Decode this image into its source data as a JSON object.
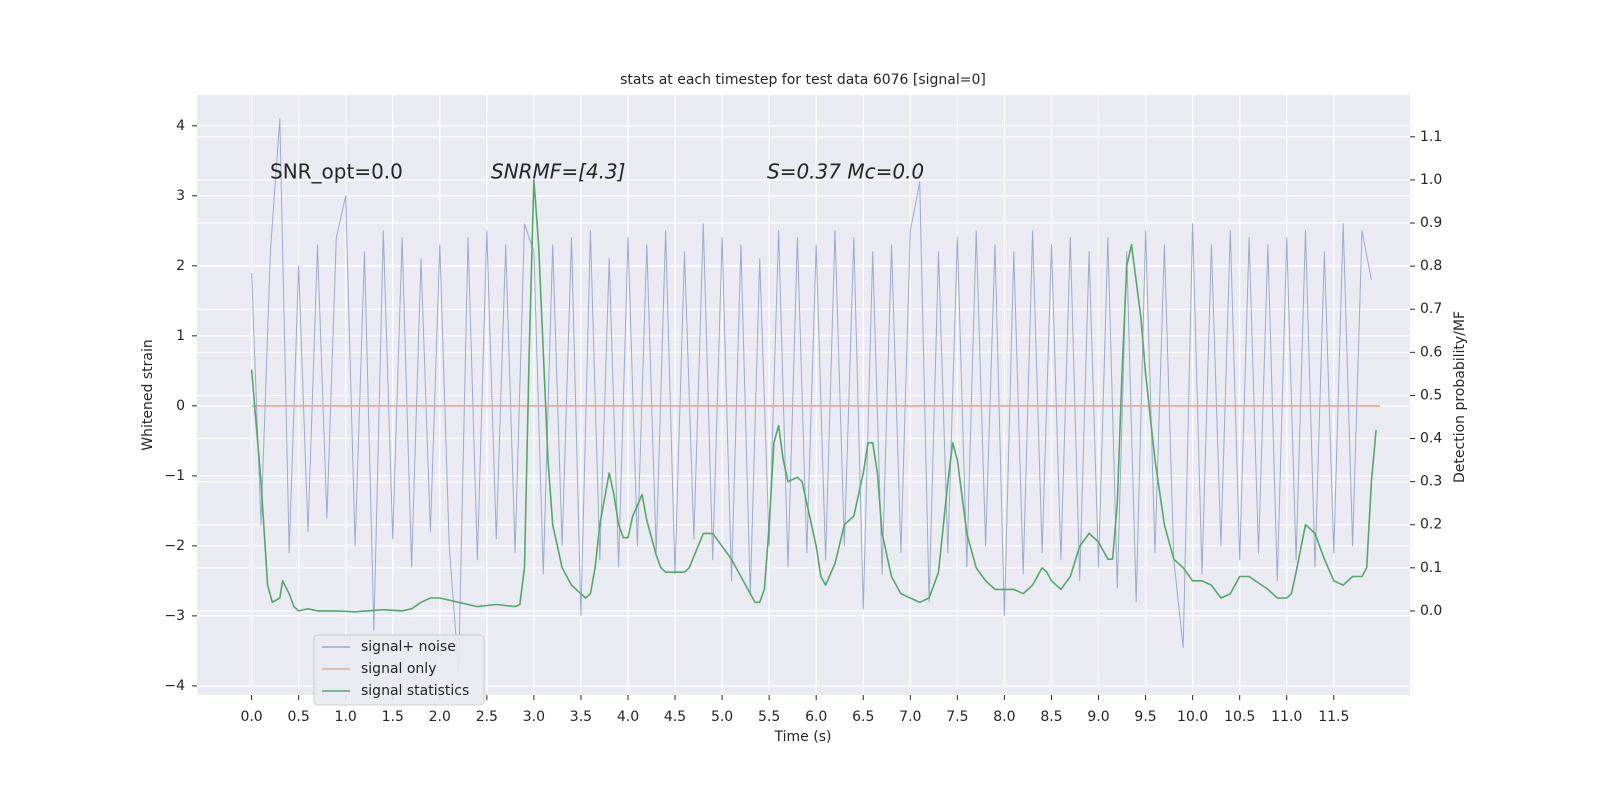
{
  "chart_data": {
    "type": "line",
    "title": "stats at each timestep for test data 6076 [signal=0]",
    "xlabel": "Time (s)",
    "ylabel": "Whitened strain",
    "y2label": "Detection probability/MF",
    "annotations": [
      "SNR_opt=0.0",
      "SNRMF=[4.3]",
      "S=0.37   Mc=0.0"
    ],
    "xlim": [
      -0.58,
      12.31
    ],
    "ylim": [
      -4.13,
      4.44
    ],
    "y2lim": [
      -0.195,
      1.197
    ],
    "xticks": [
      {
        "value": 0,
        "label": "0.0"
      },
      0.5,
      {
        "value": 1,
        "label": "1.0"
      },
      1.5,
      {
        "value": 2,
        "label": "2.0"
      },
      2.5,
      {
        "value": 3,
        "label": "3.0"
      },
      3.5,
      {
        "value": 4,
        "label": "4.0"
      },
      4.5,
      {
        "value": 5,
        "label": "5.0"
      },
      5.5,
      {
        "value": 6,
        "label": "6.0"
      },
      6.5,
      {
        "value": 7,
        "label": "7.0"
      },
      7.5,
      {
        "value": 8,
        "label": "8.0"
      },
      8.5,
      {
        "value": 9,
        "label": "9.0"
      },
      9.5,
      {
        "value": 10,
        "label": "10.0"
      },
      10.5,
      {
        "value": 11,
        "label": "11.0"
      },
      11.5
    ],
    "yticks": [
      {
        "value": -4,
        "label": "−4"
      },
      {
        "value": -3,
        "label": "−3"
      },
      {
        "value": -2,
        "label": "−2"
      },
      {
        "value": -1,
        "label": "−1"
      },
      0,
      1,
      2,
      3,
      4
    ],
    "y2ticks": [
      {
        "value": 0,
        "label": "0.0"
      },
      0.1,
      0.2,
      0.3,
      0.4,
      0.5,
      0.6,
      0.7,
      0.8,
      0.9,
      {
        "value": 1,
        "label": "1.0"
      },
      1.1
    ],
    "grid": true,
    "legend": "lower left",
    "series": [
      {
        "name": "signal+ noise",
        "color": "#9aabcf",
        "x": [
          0.0,
          0.1,
          0.2,
          0.3,
          0.4,
          0.5,
          0.6,
          0.7,
          0.8,
          0.9,
          1.0,
          1.1,
          1.2,
          1.3,
          1.4,
          1.5,
          1.6,
          1.7,
          1.8,
          1.9,
          2.0,
          2.1,
          2.2,
          2.3,
          2.4,
          2.5,
          2.6,
          2.7,
          2.8,
          2.9,
          3.0,
          3.1,
          3.2,
          3.3,
          3.4,
          3.5,
          3.6,
          3.7,
          3.8,
          3.9,
          4.0,
          4.1,
          4.2,
          4.3,
          4.4,
          4.5,
          4.6,
          4.7,
          4.8,
          4.9,
          5.0,
          5.1,
          5.2,
          5.3,
          5.4,
          5.5,
          5.6,
          5.7,
          5.8,
          5.9,
          6.0,
          6.1,
          6.2,
          6.3,
          6.4,
          6.5,
          6.6,
          6.7,
          6.8,
          6.9,
          7.0,
          7.1,
          7.2,
          7.3,
          7.4,
          7.5,
          7.6,
          7.7,
          7.8,
          7.9,
          8.0,
          8.1,
          8.2,
          8.3,
          8.4,
          8.5,
          8.6,
          8.7,
          8.8,
          8.9,
          9.0,
          9.1,
          9.2,
          9.3,
          9.4,
          9.5,
          9.6,
          9.7,
          9.8,
          9.9,
          10.0,
          10.1,
          10.2,
          10.3,
          10.4,
          10.5,
          10.6,
          10.7,
          10.8,
          10.9,
          11.0,
          11.1,
          11.2,
          11.3,
          11.4,
          11.5,
          11.6,
          11.7,
          11.8,
          11.9
        ],
        "values": [
          1.9,
          -1.7,
          2.2,
          4.1,
          -2.1,
          2.0,
          -1.8,
          2.3,
          -1.6,
          2.4,
          3.0,
          -2.0,
          2.2,
          -3.2,
          2.5,
          -1.9,
          2.4,
          -2.3,
          2.1,
          -1.8,
          2.3,
          -2.0,
          -3.8,
          2.4,
          -2.2,
          2.5,
          -1.9,
          2.3,
          -2.1,
          2.6,
          2.2,
          -2.4,
          2.3,
          -2.0,
          2.4,
          -3.0,
          2.5,
          -2.2,
          2.1,
          -2.3,
          2.4,
          -2.0,
          2.3,
          -2.1,
          2.5,
          -2.4,
          2.2,
          -1.9,
          2.6,
          -2.2,
          2.4,
          -2.5,
          2.3,
          -2.7,
          2.1,
          -2.0,
          2.5,
          -2.3,
          2.4,
          -2.1,
          2.3,
          -2.2,
          2.5,
          -2.0,
          2.4,
          -2.9,
          2.2,
          -2.4,
          2.3,
          -2.1,
          2.5,
          3.2,
          -2.8,
          2.2,
          -2.1,
          2.4,
          -2.3,
          2.5,
          -2.0,
          2.3,
          -3.0,
          2.2,
          -2.4,
          2.5,
          -2.1,
          2.3,
          -2.2,
          2.4,
          -2.5,
          2.2,
          -2.3,
          2.4,
          -2.6,
          2.2,
          -2.8,
          2.5,
          -2.1,
          2.3,
          -2.2,
          -3.45,
          2.6,
          -2.4,
          2.3,
          -2.0,
          2.5,
          -2.2,
          2.4,
          -2.1,
          2.3,
          -2.5,
          2.4,
          -2.2,
          2.5,
          -2.3,
          2.2,
          -2.1,
          2.6,
          -2.0,
          2.5,
          1.8
        ]
      },
      {
        "name": "signal only",
        "color": "#e5a98f",
        "x": [
          0.0,
          11.99
        ],
        "values": [
          0,
          0
        ]
      },
      {
        "name": "signal statistics",
        "color": "#55a868",
        "axis": "y2",
        "x": [
          0.0,
          0.1,
          0.17,
          0.22,
          0.3,
          0.33,
          0.4,
          0.45,
          0.5,
          0.6,
          0.7,
          0.9,
          1.1,
          1.4,
          1.6,
          1.7,
          1.8,
          1.9,
          2.0,
          2.2,
          2.4,
          2.6,
          2.8,
          2.85,
          2.9,
          2.95,
          3.0,
          3.05,
          3.1,
          3.15,
          3.2,
          3.3,
          3.4,
          3.5,
          3.55,
          3.6,
          3.65,
          3.7,
          3.8,
          3.85,
          3.9,
          3.95,
          4.0,
          4.05,
          4.15,
          4.2,
          4.3,
          4.35,
          4.4,
          4.6,
          4.65,
          4.8,
          4.9,
          5.0,
          5.1,
          5.2,
          5.3,
          5.35,
          5.4,
          5.45,
          5.5,
          5.55,
          5.6,
          5.65,
          5.7,
          5.8,
          5.85,
          5.9,
          6.0,
          6.05,
          6.1,
          6.2,
          6.3,
          6.4,
          6.5,
          6.55,
          6.6,
          6.65,
          6.7,
          6.8,
          6.9,
          7.0,
          7.1,
          7.2,
          7.3,
          7.4,
          7.45,
          7.5,
          7.6,
          7.7,
          7.8,
          7.9,
          8.0,
          8.1,
          8.2,
          8.3,
          8.4,
          8.45,
          8.5,
          8.6,
          8.7,
          8.8,
          8.9,
          9.0,
          9.1,
          9.15,
          9.2,
          9.25,
          9.3,
          9.35,
          9.45,
          9.5,
          9.6,
          9.7,
          9.8,
          9.9,
          10.0,
          10.1,
          10.2,
          10.3,
          10.4,
          10.5,
          10.6,
          10.8,
          10.9,
          11.0,
          11.05,
          11.1,
          11.2,
          11.3,
          11.4,
          11.5,
          11.6,
          11.7,
          11.8,
          11.85,
          11.9,
          11.95
        ],
        "values": [
          0.56,
          0.3,
          0.06,
          0.02,
          0.03,
          0.07,
          0.04,
          0.01,
          0.0,
          0.005,
          0.0,
          0.0,
          -0.002,
          0.003,
          0.0,
          0.005,
          0.02,
          0.03,
          0.03,
          0.02,
          0.01,
          0.015,
          0.01,
          0.015,
          0.1,
          0.6,
          1.0,
          0.85,
          0.6,
          0.35,
          0.2,
          0.1,
          0.06,
          0.04,
          0.03,
          0.04,
          0.1,
          0.2,
          0.32,
          0.27,
          0.2,
          0.17,
          0.17,
          0.22,
          0.27,
          0.21,
          0.13,
          0.1,
          0.09,
          0.09,
          0.1,
          0.18,
          0.18,
          0.15,
          0.12,
          0.08,
          0.04,
          0.02,
          0.02,
          0.05,
          0.2,
          0.39,
          0.43,
          0.35,
          0.3,
          0.31,
          0.3,
          0.25,
          0.15,
          0.08,
          0.06,
          0.11,
          0.2,
          0.22,
          0.32,
          0.39,
          0.39,
          0.32,
          0.18,
          0.08,
          0.04,
          0.03,
          0.02,
          0.03,
          0.09,
          0.3,
          0.39,
          0.35,
          0.18,
          0.1,
          0.07,
          0.05,
          0.05,
          0.05,
          0.04,
          0.06,
          0.1,
          0.09,
          0.07,
          0.05,
          0.08,
          0.15,
          0.18,
          0.16,
          0.12,
          0.12,
          0.25,
          0.55,
          0.8,
          0.85,
          0.68,
          0.55,
          0.35,
          0.2,
          0.12,
          0.1,
          0.07,
          0.07,
          0.06,
          0.03,
          0.04,
          0.08,
          0.08,
          0.05,
          0.03,
          0.03,
          0.04,
          0.09,
          0.2,
          0.18,
          0.12,
          0.07,
          0.06,
          0.08,
          0.08,
          0.1,
          0.3,
          0.42
        ]
      }
    ]
  }
}
